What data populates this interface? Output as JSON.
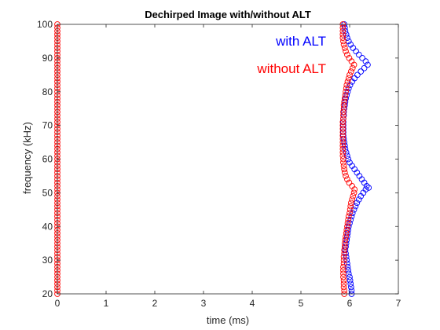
{
  "chart_data": {
    "type": "scatter",
    "title": "Dechirped Image with/without ALT",
    "xlabel": "time (ms)",
    "ylabel": "frequency (kHz)",
    "xlim": [
      0,
      7
    ],
    "ylim": [
      20,
      100
    ],
    "xticks": [
      "0",
      "1",
      "2",
      "3",
      "4",
      "5",
      "6",
      "7"
    ],
    "yticks": [
      "20",
      "30",
      "40",
      "50",
      "60",
      "70",
      "80",
      "90",
      "100"
    ],
    "grid": false,
    "marker": "open-circle",
    "annotations": [
      {
        "text": "with ALT",
        "color": "#0000ff"
      },
      {
        "text": "without ALT",
        "color": "#ff0000"
      }
    ],
    "series": [
      {
        "name": "with ALT",
        "color": "#0000ff",
        "points": [
          [
            6.04,
            20
          ],
          [
            6.04,
            21
          ],
          [
            6.03,
            22
          ],
          [
            6.02,
            23
          ],
          [
            6.01,
            24
          ],
          [
            6.0,
            25
          ],
          [
            5.98,
            26
          ],
          [
            5.97,
            27
          ],
          [
            5.96,
            28
          ],
          [
            5.95,
            29
          ],
          [
            5.94,
            30
          ],
          [
            5.93,
            31
          ],
          [
            5.92,
            32
          ],
          [
            5.91,
            33
          ],
          [
            5.92,
            34
          ],
          [
            5.93,
            35
          ],
          [
            5.94,
            36
          ],
          [
            5.95,
            37
          ],
          [
            5.96,
            38
          ],
          [
            5.97,
            39
          ],
          [
            5.98,
            40
          ],
          [
            6.0,
            41
          ],
          [
            6.02,
            42
          ],
          [
            6.04,
            43
          ],
          [
            6.06,
            44
          ],
          [
            6.09,
            45
          ],
          [
            6.12,
            46
          ],
          [
            6.15,
            47
          ],
          [
            6.19,
            48
          ],
          [
            6.23,
            49
          ],
          [
            6.28,
            50
          ],
          [
            6.33,
            51
          ],
          [
            6.39,
            51.5
          ],
          [
            6.35,
            52
          ],
          [
            6.3,
            53
          ],
          [
            6.25,
            54
          ],
          [
            6.2,
            55
          ],
          [
            6.15,
            56
          ],
          [
            6.1,
            57
          ],
          [
            6.05,
            58
          ],
          [
            6.0,
            59
          ],
          [
            5.97,
            60
          ],
          [
            5.95,
            61
          ],
          [
            5.93,
            62
          ],
          [
            5.91,
            63
          ],
          [
            5.9,
            64
          ],
          [
            5.89,
            65
          ],
          [
            5.88,
            66
          ],
          [
            5.87,
            67
          ],
          [
            5.87,
            68
          ],
          [
            5.87,
            69
          ],
          [
            5.87,
            70
          ],
          [
            5.87,
            71
          ],
          [
            5.87,
            72
          ],
          [
            5.88,
            73
          ],
          [
            5.88,
            74
          ],
          [
            5.89,
            75
          ],
          [
            5.9,
            76
          ],
          [
            5.91,
            77
          ],
          [
            5.92,
            78
          ],
          [
            5.94,
            79
          ],
          [
            5.96,
            80
          ],
          [
            5.98,
            81
          ],
          [
            6.01,
            82
          ],
          [
            6.05,
            83
          ],
          [
            6.1,
            84
          ],
          [
            6.16,
            85
          ],
          [
            6.23,
            86
          ],
          [
            6.3,
            87
          ],
          [
            6.37,
            88
          ],
          [
            6.33,
            89
          ],
          [
            6.26,
            90
          ],
          [
            6.19,
            91
          ],
          [
            6.13,
            92
          ],
          [
            6.07,
            93
          ],
          [
            6.02,
            94
          ],
          [
            5.98,
            95
          ],
          [
            5.95,
            96
          ],
          [
            5.93,
            97
          ],
          [
            5.91,
            98
          ],
          [
            5.9,
            99
          ],
          [
            5.89,
            100
          ]
        ]
      },
      {
        "name": "without ALT",
        "color": "#ff0000",
        "points": [
          [
            0,
            20
          ],
          [
            0,
            21
          ],
          [
            0,
            22
          ],
          [
            0,
            23
          ],
          [
            0,
            24
          ],
          [
            0,
            25
          ],
          [
            0,
            26
          ],
          [
            0,
            27
          ],
          [
            0,
            28
          ],
          [
            0,
            29
          ],
          [
            0,
            30
          ],
          [
            0,
            31
          ],
          [
            0,
            32
          ],
          [
            0,
            33
          ],
          [
            0,
            34
          ],
          [
            0,
            35
          ],
          [
            0,
            36
          ],
          [
            0,
            37
          ],
          [
            0,
            38
          ],
          [
            0,
            39
          ],
          [
            0,
            40
          ],
          [
            0,
            41
          ],
          [
            0,
            42
          ],
          [
            0,
            43
          ],
          [
            0,
            44
          ],
          [
            0,
            45
          ],
          [
            0,
            46
          ],
          [
            0,
            47
          ],
          [
            0,
            48
          ],
          [
            0,
            49
          ],
          [
            0,
            50
          ],
          [
            0,
            51
          ],
          [
            0,
            52
          ],
          [
            0,
            53
          ],
          [
            0,
            54
          ],
          [
            0,
            55
          ],
          [
            0,
            56
          ],
          [
            0,
            57
          ],
          [
            0,
            58
          ],
          [
            0,
            59
          ],
          [
            0,
            60
          ],
          [
            0,
            61
          ],
          [
            0,
            62
          ],
          [
            0,
            63
          ],
          [
            0,
            64
          ],
          [
            0,
            65
          ],
          [
            0,
            66
          ],
          [
            0,
            67
          ],
          [
            0,
            68
          ],
          [
            0,
            69
          ],
          [
            0,
            70
          ],
          [
            0,
            71
          ],
          [
            0,
            72
          ],
          [
            0,
            73
          ],
          [
            0,
            74
          ],
          [
            0,
            75
          ],
          [
            0,
            76
          ],
          [
            0,
            77
          ],
          [
            0,
            78
          ],
          [
            0,
            79
          ],
          [
            0,
            80
          ],
          [
            0,
            81
          ],
          [
            0,
            82
          ],
          [
            0,
            83
          ],
          [
            0,
            84
          ],
          [
            0,
            85
          ],
          [
            0,
            86
          ],
          [
            0,
            87
          ],
          [
            0,
            88
          ],
          [
            0,
            89
          ],
          [
            0,
            90
          ],
          [
            0,
            91
          ],
          [
            0,
            92
          ],
          [
            0,
            93
          ],
          [
            0,
            94
          ],
          [
            0,
            95
          ],
          [
            0,
            96
          ],
          [
            0,
            97
          ],
          [
            0,
            98
          ],
          [
            0,
            99
          ],
          [
            0,
            100
          ],
          [
            5.89,
            20
          ],
          [
            5.89,
            21
          ],
          [
            5.88,
            22
          ],
          [
            5.88,
            23
          ],
          [
            5.88,
            24
          ],
          [
            5.87,
            25
          ],
          [
            5.87,
            26
          ],
          [
            5.87,
            27
          ],
          [
            5.87,
            28
          ],
          [
            5.88,
            29
          ],
          [
            5.88,
            30
          ],
          [
            5.88,
            31
          ],
          [
            5.89,
            32
          ],
          [
            5.89,
            33
          ],
          [
            5.9,
            34
          ],
          [
            5.9,
            35
          ],
          [
            5.91,
            36
          ],
          [
            5.92,
            37
          ],
          [
            5.93,
            38
          ],
          [
            5.94,
            39
          ],
          [
            5.95,
            40
          ],
          [
            5.96,
            41
          ],
          [
            5.97,
            42
          ],
          [
            5.98,
            43
          ],
          [
            6.0,
            44
          ],
          [
            6.01,
            45
          ],
          [
            6.02,
            46
          ],
          [
            6.03,
            47
          ],
          [
            6.05,
            48
          ],
          [
            6.07,
            49
          ],
          [
            6.09,
            50
          ],
          [
            6.1,
            51
          ],
          [
            6.05,
            52
          ],
          [
            5.99,
            53
          ],
          [
            5.95,
            54
          ],
          [
            5.92,
            55
          ],
          [
            5.9,
            56
          ],
          [
            5.89,
            57
          ],
          [
            5.88,
            58
          ],
          [
            5.87,
            59
          ],
          [
            5.87,
            60
          ],
          [
            5.86,
            61
          ],
          [
            5.86,
            62
          ],
          [
            5.86,
            63
          ],
          [
            5.86,
            64
          ],
          [
            5.86,
            65
          ],
          [
            5.86,
            66
          ],
          [
            5.86,
            67
          ],
          [
            5.86,
            68
          ],
          [
            5.86,
            69
          ],
          [
            5.86,
            70
          ],
          [
            5.86,
            71
          ],
          [
            5.87,
            72
          ],
          [
            5.87,
            73
          ],
          [
            5.87,
            74
          ],
          [
            5.88,
            75
          ],
          [
            5.88,
            76
          ],
          [
            5.89,
            77
          ],
          [
            5.9,
            78
          ],
          [
            5.91,
            79
          ],
          [
            5.92,
            80
          ],
          [
            5.93,
            81
          ],
          [
            5.94,
            82
          ],
          [
            5.96,
            83
          ],
          [
            5.98,
            84
          ],
          [
            6.0,
            85
          ],
          [
            6.03,
            86
          ],
          [
            6.06,
            87
          ],
          [
            6.09,
            88
          ],
          [
            6.04,
            89
          ],
          [
            5.99,
            90
          ],
          [
            5.95,
            91
          ],
          [
            5.92,
            92
          ],
          [
            5.9,
            93
          ],
          [
            5.88,
            94
          ],
          [
            5.87,
            95
          ],
          [
            5.86,
            96
          ],
          [
            5.86,
            97
          ],
          [
            5.86,
            98
          ],
          [
            5.86,
            99
          ],
          [
            5.86,
            100
          ]
        ]
      }
    ]
  }
}
